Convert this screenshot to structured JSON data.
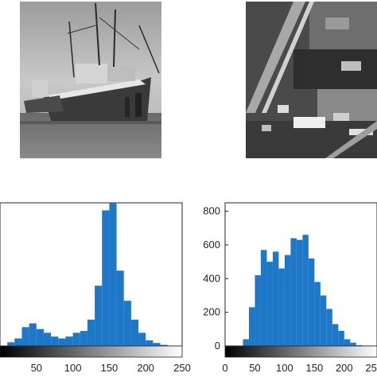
{
  "panels": {
    "left_photo": {
      "subject": "harbor boats, grayscale"
    },
    "right_photo": {
      "subject": "aerial view with highway, grayscale"
    }
  },
  "chart_data": [
    {
      "type": "bar",
      "subtype": "histogram",
      "title": "",
      "xlabel": "",
      "ylabel": "",
      "xlim": [
        0,
        250
      ],
      "x_ticks": [
        "50",
        "100",
        "150",
        "200",
        "250"
      ],
      "y_ticks": [],
      "bar_color": "#1f77c8",
      "colorbar": "black-to-white gradient below axis",
      "bins": [
        0,
        10,
        20,
        30,
        40,
        50,
        60,
        70,
        80,
        90,
        100,
        110,
        120,
        130,
        140,
        150,
        160,
        170,
        180,
        190,
        200,
        210,
        220,
        230,
        240
      ],
      "values": [
        0,
        10,
        20,
        50,
        60,
        45,
        35,
        25,
        20,
        25,
        35,
        40,
        70,
        160,
        360,
        380,
        200,
        120,
        70,
        35,
        15,
        8,
        3,
        0,
        0
      ],
      "relative_scale_max": 380
    },
    {
      "type": "bar",
      "subtype": "histogram",
      "title": "",
      "xlabel": "",
      "ylabel": "",
      "xlim": [
        0,
        255
      ],
      "ylim": [
        0,
        850
      ],
      "x_ticks": [
        "0",
        "50",
        "100",
        "150",
        "200",
        "250"
      ],
      "y_ticks": [
        "0",
        "200",
        "400",
        "600",
        "800"
      ],
      "bar_color": "#1f77c8",
      "colorbar": "black-to-white gradient below axis",
      "bins": [
        0,
        10,
        20,
        30,
        40,
        50,
        60,
        70,
        80,
        90,
        100,
        110,
        120,
        130,
        140,
        150,
        160,
        170,
        180,
        190,
        200,
        210,
        220,
        230,
        240,
        250
      ],
      "values": [
        0,
        0,
        0,
        40,
        230,
        420,
        570,
        500,
        560,
        460,
        540,
        640,
        630,
        660,
        520,
        380,
        300,
        220,
        130,
        90,
        40,
        20,
        5,
        0,
        0,
        0
      ]
    }
  ]
}
